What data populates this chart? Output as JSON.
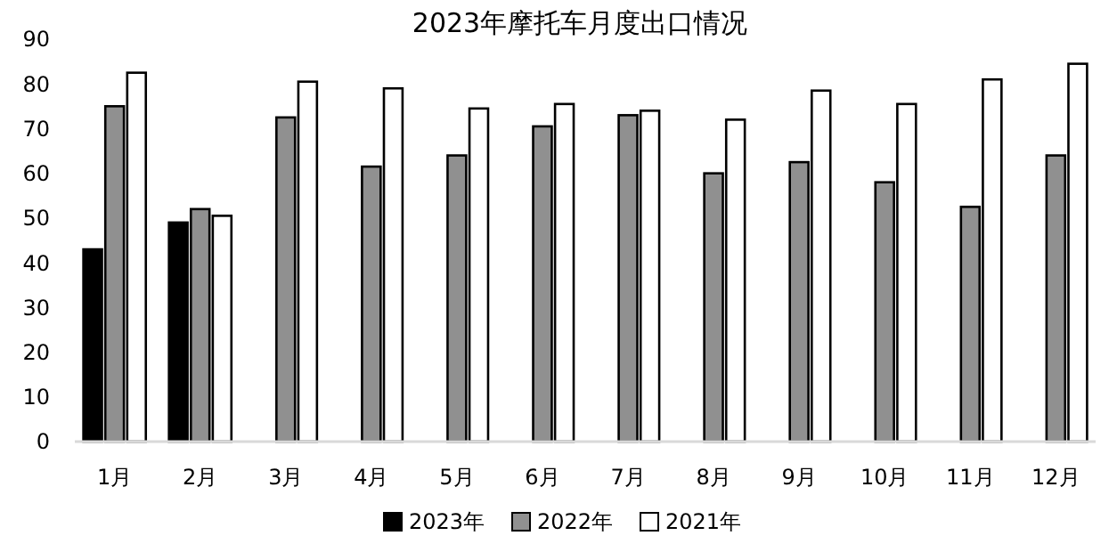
{
  "chart_data": {
    "type": "bar",
    "title": "2023年摩托车月度出口情况",
    "categories": [
      "1月",
      "2月",
      "3月",
      "4月",
      "5月",
      "6月",
      "7月",
      "8月",
      "9月",
      "10月",
      "11月",
      "12月"
    ],
    "series": [
      {
        "name": "2023年",
        "color": "#000000",
        "values": [
          43,
          49,
          null,
          null,
          null,
          null,
          null,
          null,
          null,
          null,
          null,
          null
        ]
      },
      {
        "name": "2022年",
        "color": "#909090",
        "values": [
          75,
          52,
          72.5,
          61.5,
          64,
          70.5,
          73,
          60,
          62.5,
          58,
          52.5,
          64
        ]
      },
      {
        "name": "2021年",
        "color": "#ffffff",
        "values": [
          82.5,
          50.5,
          80.5,
          79,
          74.5,
          75.5,
          74,
          72,
          78.5,
          75.5,
          81,
          84.5
        ]
      }
    ],
    "ylim": [
      0,
      90
    ],
    "yticks": [
      0,
      10,
      20,
      30,
      40,
      50,
      60,
      70,
      80,
      90
    ],
    "grid": false,
    "legend": "bottom"
  }
}
